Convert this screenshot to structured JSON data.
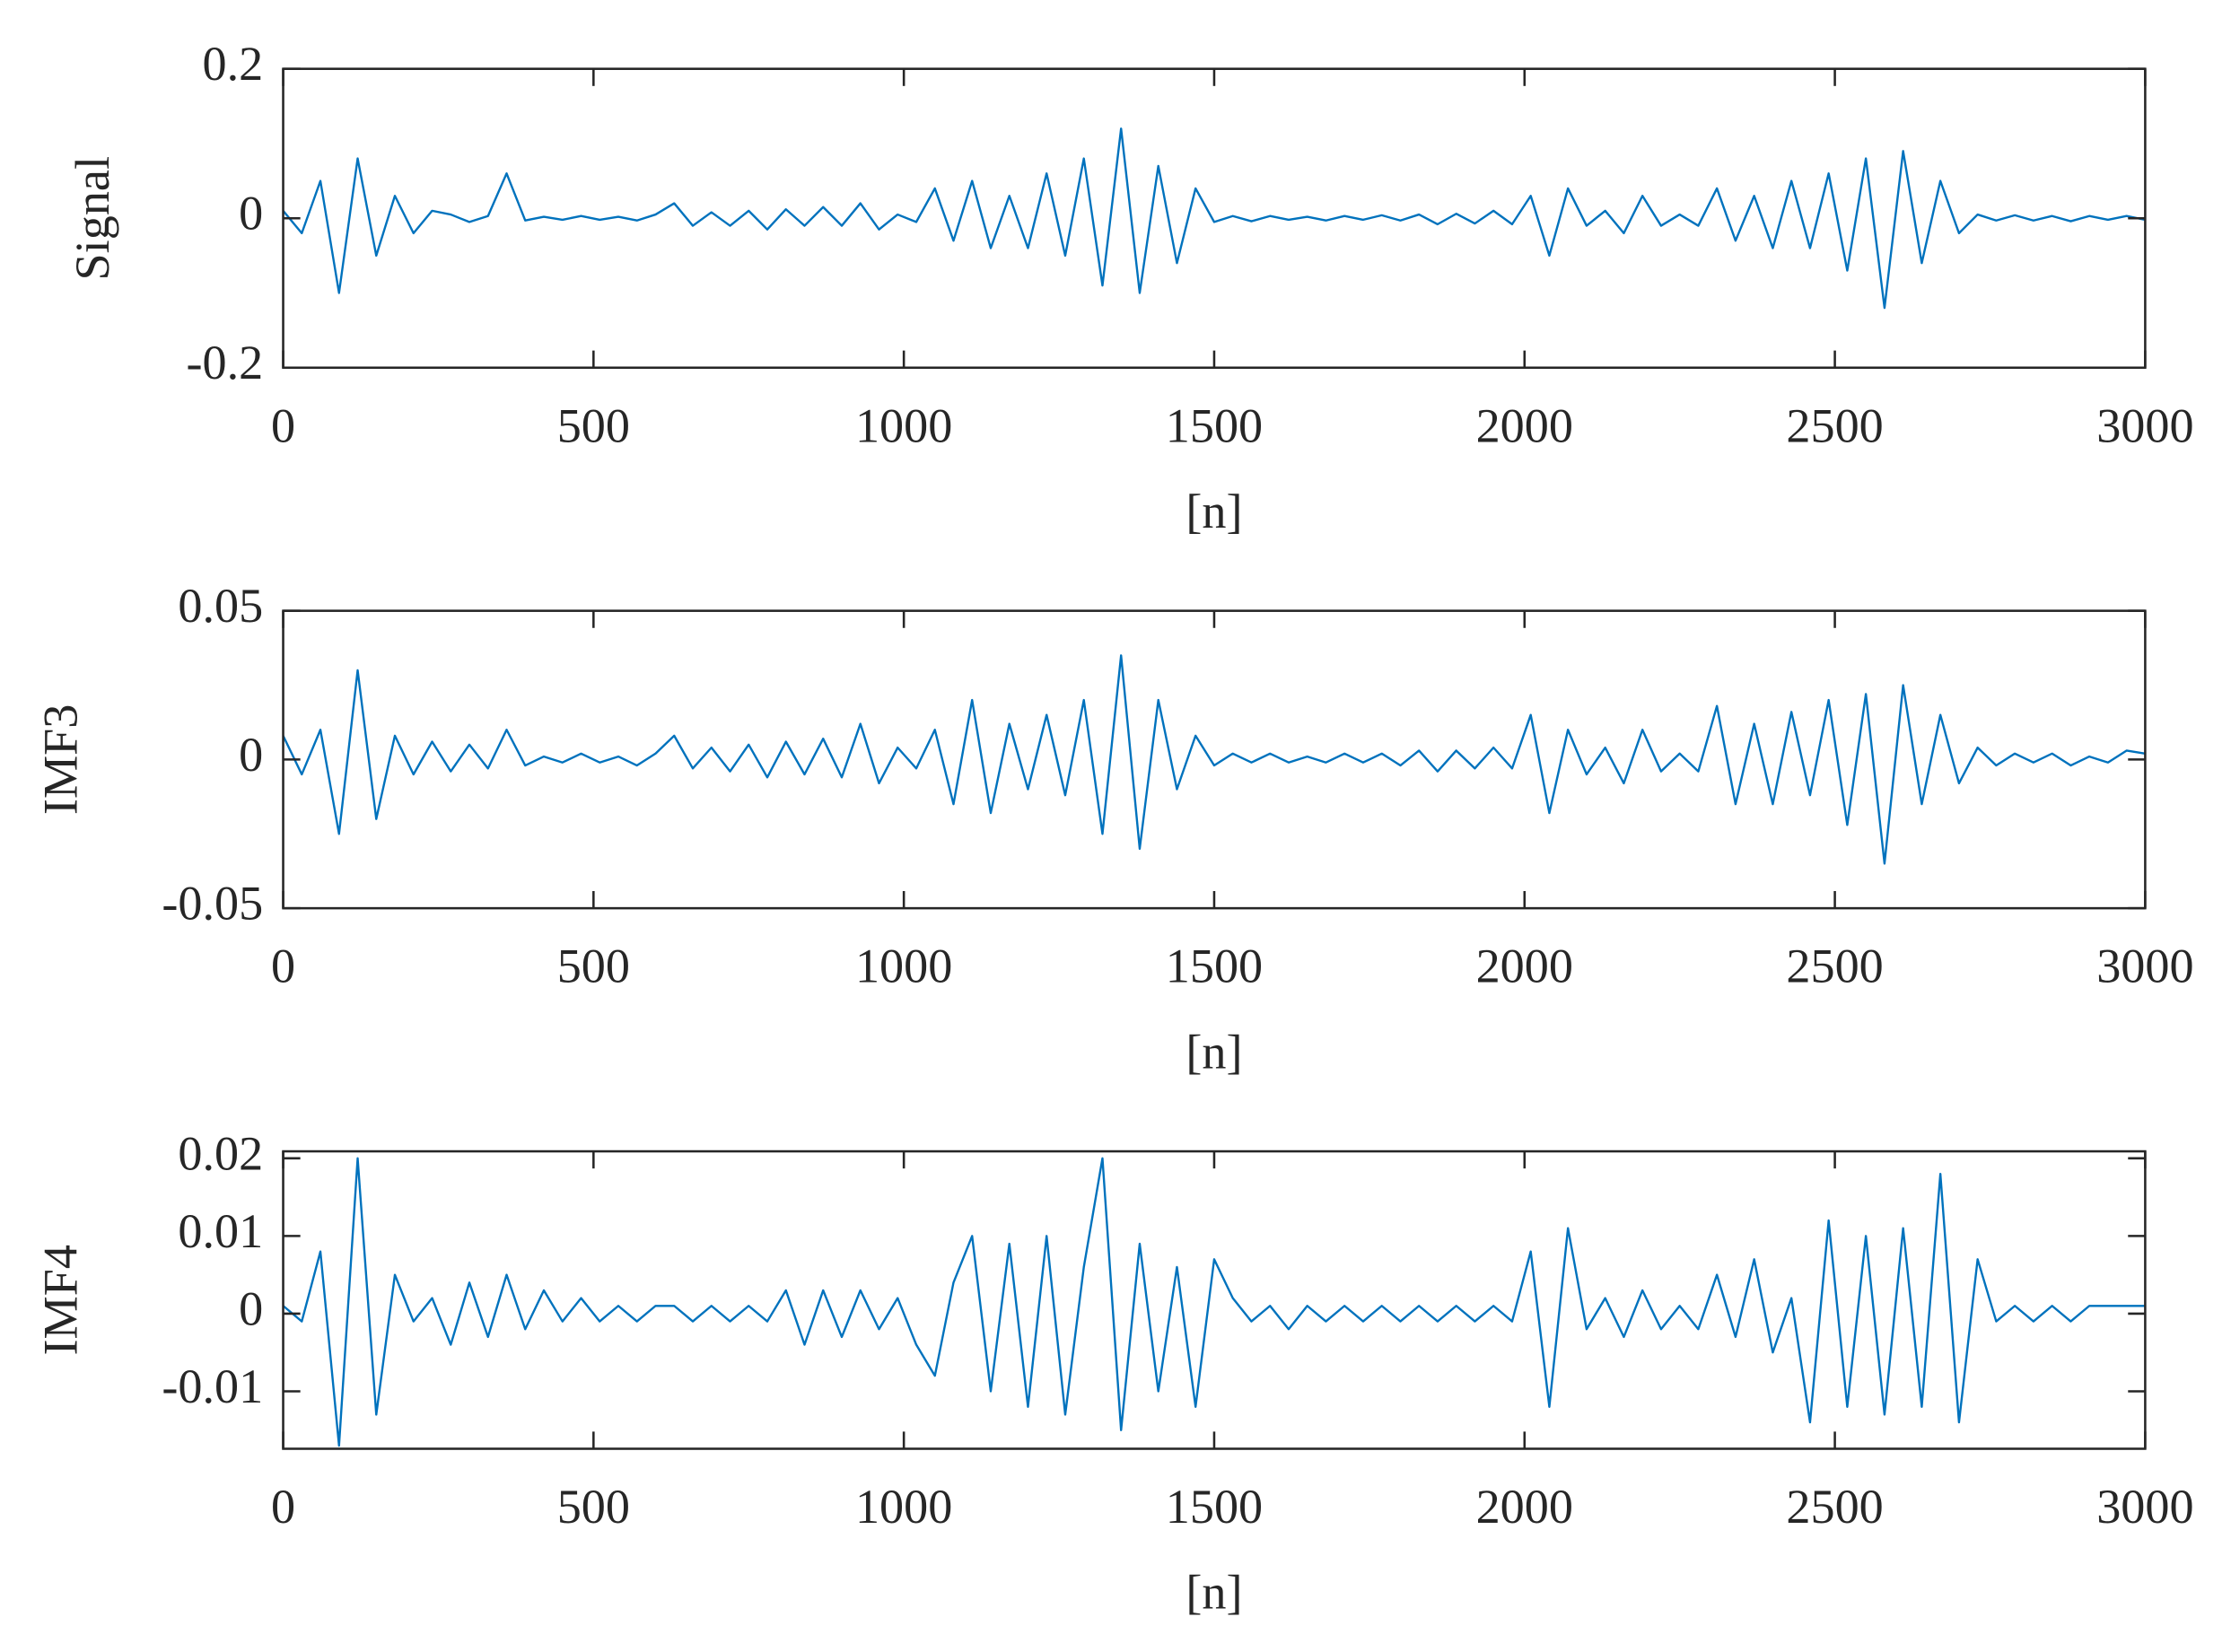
{
  "chart_data": [
    {
      "type": "line",
      "ylabel": "Signal",
      "xlabel": "[n]",
      "color": "#0072BD",
      "xlim": [
        0,
        3000
      ],
      "xticks": [
        0,
        500,
        1000,
        1500,
        2000,
        2500,
        3000
      ],
      "ylim": [
        -0.2,
        0.2
      ],
      "yticks": [
        -0.2,
        0,
        0.2
      ],
      "x": [
        0,
        30,
        60,
        90,
        120,
        150,
        180,
        210,
        240,
        270,
        300,
        330,
        360,
        390,
        420,
        450,
        480,
        510,
        540,
        570,
        600,
        630,
        660,
        690,
        720,
        750,
        780,
        810,
        840,
        870,
        900,
        930,
        960,
        990,
        1020,
        1050,
        1080,
        1110,
        1140,
        1170,
        1200,
        1230,
        1260,
        1290,
        1320,
        1350,
        1380,
        1410,
        1440,
        1470,
        1500,
        1530,
        1560,
        1590,
        1620,
        1650,
        1680,
        1710,
        1740,
        1770,
        1800,
        1830,
        1860,
        1890,
        1920,
        1950,
        1980,
        2010,
        2040,
        2070,
        2100,
        2130,
        2160,
        2190,
        2220,
        2250,
        2280,
        2310,
        2340,
        2370,
        2400,
        2430,
        2460,
        2490,
        2520,
        2550,
        2580,
        2610,
        2640,
        2670,
        2700,
        2730,
        2760,
        2790,
        2820,
        2850,
        2880,
        2910,
        2940,
        2970,
        3000
      ],
      "values": [
        0.01,
        -0.02,
        0.05,
        -0.1,
        0.08,
        -0.05,
        0.03,
        -0.02,
        0.01,
        0.005,
        -0.005,
        0.003,
        0.06,
        -0.003,
        0.002,
        -0.002,
        0.003,
        -0.002,
        0.002,
        -0.003,
        0.005,
        0.02,
        -0.01,
        0.008,
        -0.01,
        0.01,
        -0.015,
        0.012,
        -0.01,
        0.015,
        -0.01,
        0.02,
        -0.015,
        0.005,
        -0.005,
        0.04,
        -0.03,
        0.05,
        -0.04,
        0.03,
        -0.04,
        0.06,
        -0.05,
        0.08,
        -0.09,
        0.12,
        -0.1,
        0.07,
        -0.06,
        0.04,
        -0.005,
        0.003,
        -0.004,
        0.003,
        -0.002,
        0.002,
        -0.003,
        0.003,
        -0.002,
        0.004,
        -0.003,
        0.005,
        -0.008,
        0.006,
        -0.007,
        0.01,
        -0.008,
        0.03,
        -0.05,
        0.04,
        -0.01,
        0.01,
        -0.02,
        0.03,
        -0.01,
        0.005,
        -0.01,
        0.04,
        -0.03,
        0.03,
        -0.04,
        0.05,
        -0.04,
        0.06,
        -0.07,
        0.08,
        -0.12,
        0.09,
        -0.06,
        0.05,
        -0.02,
        0.005,
        -0.003,
        0.004,
        -0.003,
        0.003,
        -0.004,
        0.003,
        -0.002,
        0.003,
        -0.002
      ]
    },
    {
      "type": "line",
      "ylabel": "IMF3",
      "xlabel": "[n]",
      "color": "#0072BD",
      "xlim": [
        0,
        3000
      ],
      "xticks": [
        0,
        500,
        1000,
        1500,
        2000,
        2500,
        3000
      ],
      "ylim": [
        -0.05,
        0.05
      ],
      "yticks": [
        -0.05,
        0,
        0.05
      ],
      "x": [
        0,
        30,
        60,
        90,
        120,
        150,
        180,
        210,
        240,
        270,
        300,
        330,
        360,
        390,
        420,
        450,
        480,
        510,
        540,
        570,
        600,
        630,
        660,
        690,
        720,
        750,
        780,
        810,
        840,
        870,
        900,
        930,
        960,
        990,
        1020,
        1050,
        1080,
        1110,
        1140,
        1170,
        1200,
        1230,
        1260,
        1290,
        1320,
        1350,
        1380,
        1410,
        1440,
        1470,
        1500,
        1530,
        1560,
        1590,
        1620,
        1650,
        1680,
        1710,
        1740,
        1770,
        1800,
        1830,
        1860,
        1890,
        1920,
        1950,
        1980,
        2010,
        2040,
        2070,
        2100,
        2130,
        2160,
        2190,
        2220,
        2250,
        2280,
        2310,
        2340,
        2370,
        2400,
        2430,
        2460,
        2490,
        2520,
        2550,
        2580,
        2610,
        2640,
        2670,
        2700,
        2730,
        2760,
        2790,
        2820,
        2850,
        2880,
        2910,
        2940,
        2970,
        3000
      ],
      "values": [
        0.008,
        -0.005,
        0.01,
        -0.025,
        0.03,
        -0.02,
        0.008,
        -0.005,
        0.006,
        -0.004,
        0.005,
        -0.003,
        0.01,
        -0.002,
        0.001,
        -0.001,
        0.002,
        -0.001,
        0.001,
        -0.002,
        0.002,
        0.008,
        -0.003,
        0.004,
        -0.004,
        0.005,
        -0.006,
        0.006,
        -0.005,
        0.007,
        -0.006,
        0.012,
        -0.008,
        0.004,
        -0.003,
        0.01,
        -0.015,
        0.02,
        -0.018,
        0.012,
        -0.01,
        0.015,
        -0.012,
        0.02,
        -0.025,
        0.035,
        -0.03,
        0.02,
        -0.01,
        0.008,
        -0.002,
        0.002,
        -0.001,
        0.002,
        -0.001,
        0.001,
        -0.001,
        0.002,
        -0.001,
        0.002,
        -0.002,
        0.003,
        -0.004,
        0.003,
        -0.003,
        0.004,
        -0.003,
        0.015,
        -0.018,
        0.01,
        -0.005,
        0.004,
        -0.008,
        0.01,
        -0.004,
        0.002,
        -0.004,
        0.018,
        -0.015,
        0.012,
        -0.015,
        0.016,
        -0.012,
        0.02,
        -0.022,
        0.022,
        -0.035,
        0.025,
        -0.015,
        0.015,
        -0.008,
        0.004,
        -0.002,
        0.002,
        -0.001,
        0.002,
        -0.002,
        0.001,
        -0.001,
        0.003,
        0.002
      ]
    },
    {
      "type": "line",
      "ylabel": "IMF4",
      "xlabel": "[n]",
      "color": "#0072BD",
      "xlim": [
        0,
        3000
      ],
      "xticks": [
        0,
        500,
        1000,
        1500,
        2000,
        2500,
        3000
      ],
      "ylim": [
        -0.0174,
        0.0209
      ],
      "yticks": [
        -0.01,
        0,
        0.01,
        0.02
      ],
      "x": [
        0,
        30,
        60,
        90,
        120,
        150,
        180,
        210,
        240,
        270,
        300,
        330,
        360,
        390,
        420,
        450,
        480,
        510,
        540,
        570,
        600,
        630,
        660,
        690,
        720,
        750,
        780,
        810,
        840,
        870,
        900,
        930,
        960,
        990,
        1020,
        1050,
        1080,
        1110,
        1140,
        1170,
        1200,
        1230,
        1260,
        1290,
        1320,
        1350,
        1380,
        1410,
        1440,
        1470,
        1500,
        1530,
        1560,
        1590,
        1620,
        1650,
        1680,
        1710,
        1740,
        1770,
        1800,
        1830,
        1860,
        1890,
        1920,
        1950,
        1980,
        2010,
        2040,
        2070,
        2100,
        2130,
        2160,
        2190,
        2220,
        2250,
        2280,
        2310,
        2340,
        2370,
        2400,
        2430,
        2460,
        2490,
        2520,
        2550,
        2580,
        2610,
        2640,
        2670,
        2700,
        2730,
        2760,
        2790,
        2820,
        2850,
        2880,
        2910,
        2940,
        2970,
        3000
      ],
      "values": [
        0.001,
        -0.001,
        0.008,
        -0.017,
        0.02,
        -0.013,
        0.005,
        -0.001,
        0.002,
        -0.004,
        0.004,
        -0.003,
        0.005,
        -0.002,
        0.003,
        -0.001,
        0.002,
        -0.001,
        0.001,
        -0.001,
        0.001,
        0.001,
        -0.001,
        0.001,
        -0.001,
        0.001,
        -0.001,
        0.003,
        -0.004,
        0.003,
        -0.003,
        0.003,
        -0.002,
        0.002,
        -0.004,
        -0.008,
        0.004,
        0.01,
        -0.01,
        0.009,
        -0.012,
        0.01,
        -0.013,
        0.006,
        0.02,
        -0.015,
        0.009,
        -0.01,
        0.006,
        -0.012,
        0.007,
        0.002,
        -0.001,
        0.001,
        -0.002,
        0.001,
        -0.001,
        0.001,
        -0.001,
        0.001,
        -0.001,
        0.001,
        -0.001,
        0.001,
        -0.001,
        0.001,
        -0.001,
        0.008,
        -0.012,
        0.011,
        -0.002,
        0.002,
        -0.003,
        0.003,
        -0.002,
        0.001,
        -0.002,
        0.005,
        -0.003,
        0.007,
        -0.005,
        0.002,
        -0.014,
        0.012,
        -0.012,
        0.01,
        -0.013,
        0.011,
        -0.012,
        0.018,
        -0.014,
        0.007,
        -0.001,
        0.001,
        -0.001,
        0.001,
        -0.001,
        0.001,
        0.001,
        0.001,
        0.001
      ]
    }
  ]
}
